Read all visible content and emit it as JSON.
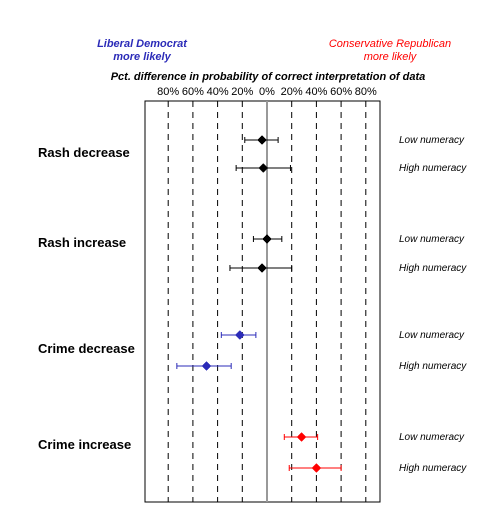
{
  "chart_data": {
    "type": "scatter",
    "header_left": [
      "Liberal Democrat",
      "more likely"
    ],
    "header_right": [
      "Conservative Republican",
      "more likely"
    ],
    "subtitle": "Pct. difference in probability  of correct interpretation of data",
    "x_tick_labels": [
      "80%",
      "60%",
      "40%",
      "20%",
      "0%",
      "20%",
      "40%",
      "60%",
      "80%"
    ],
    "x_ticks": [
      -80,
      -60,
      -40,
      -20,
      0,
      20,
      40,
      60,
      80
    ],
    "xlim": [
      -80,
      80
    ],
    "grid": true,
    "colors": {
      "liberal": "#2b2bb8",
      "conservative": "#ff0000",
      "neutral": "#000000"
    },
    "groups": [
      {
        "label": "Rash decrease",
        "points": [
          {
            "row": "Low numeracy",
            "value": -4,
            "lo": -18,
            "hi": 9,
            "color": "#000000"
          },
          {
            "row": "High numeracy",
            "value": -3,
            "lo": -25,
            "hi": 19,
            "color": "#000000"
          }
        ]
      },
      {
        "label": "Rash increase",
        "points": [
          {
            "row": "Low numeracy",
            "value": 0,
            "lo": -11,
            "hi": 12,
            "color": "#000000"
          },
          {
            "row": "High numeracy",
            "value": -4,
            "lo": -30,
            "hi": 20,
            "color": "#000000"
          }
        ]
      },
      {
        "label": "Crime decrease",
        "points": [
          {
            "row": "Low numeracy",
            "value": -22,
            "lo": -37,
            "hi": -9,
            "color": "#2b2bb8"
          },
          {
            "row": "High numeracy",
            "value": -49,
            "lo": -73,
            "hi": -29,
            "color": "#2b2bb8"
          }
        ]
      },
      {
        "label": "Crime increase",
        "points": [
          {
            "row": "Low numeracy",
            "value": 28,
            "lo": 14,
            "hi": 41,
            "color": "#ff0000"
          },
          {
            "row": "High numeracy",
            "value": 40,
            "lo": 18,
            "hi": 60,
            "color": "#ff0000"
          }
        ]
      }
    ]
  }
}
